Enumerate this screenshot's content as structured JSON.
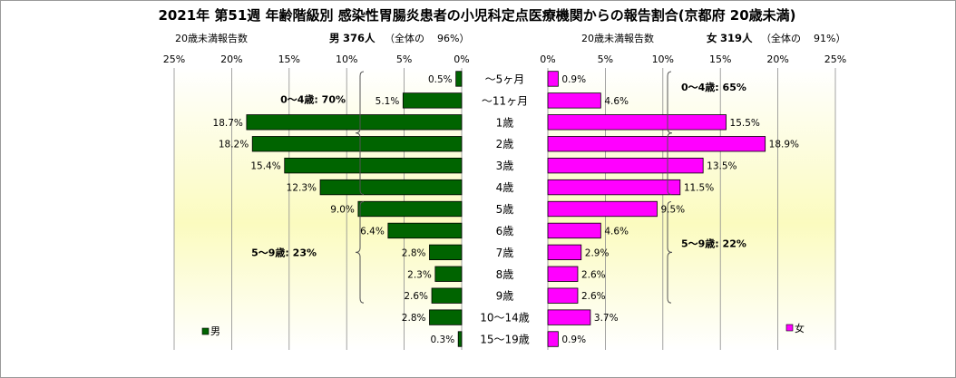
{
  "title": "2021年 第51週 年齢階級別 感染性胃腸炎患者の小児科定点医療機関からの報告割合(京都府 20歳未満)",
  "colors": {
    "male": "#006400",
    "female": "#ff00ff",
    "bar_stroke": "#000000",
    "plot_bg_top": "#ffffff",
    "plot_bg_mid": "#fbfbbf"
  },
  "male_header": {
    "label": "20歳未満報告数",
    "sex": "男",
    "count": "376人",
    "share_label": "（全体の",
    "share_value": "96%）"
  },
  "female_header": {
    "label": "20歳未満報告数",
    "sex": "女",
    "count": "319人",
    "share_label": "（全体の",
    "share_value": "91%）"
  },
  "chart_data": {
    "type": "bar",
    "orientation": "horizontal-butterfly",
    "unit": "%",
    "categories": [
      "～5ヶ月",
      "～11ヶ月",
      "1歳",
      "2歳",
      "3歳",
      "4歳",
      "5歳",
      "6歳",
      "7歳",
      "8歳",
      "9歳",
      "10～14歳",
      "15～19歳"
    ],
    "series": [
      {
        "name": "男",
        "side": "left",
        "values": [
          0.5,
          5.1,
          18.7,
          18.2,
          15.4,
          12.3,
          9.0,
          6.4,
          2.8,
          2.3,
          2.6,
          2.8,
          0.3
        ]
      },
      {
        "name": "女",
        "side": "right",
        "values": [
          0.9,
          4.6,
          15.5,
          18.9,
          13.5,
          11.5,
          9.5,
          4.6,
          2.9,
          2.6,
          2.6,
          3.7,
          0.9
        ]
      }
    ],
    "value_labels": {
      "male": [
        "0.5%",
        "5.1%",
        "18.7%",
        "18.2%",
        "15.4%",
        "12.3%",
        "9.0%",
        "6.4%",
        "2.8%",
        "2.3%",
        "2.6%",
        "2.8%",
        "0.3%"
      ],
      "female": [
        "0.9%",
        "4.6%",
        "15.5%",
        "18.9%",
        "13.5%",
        "11.5%",
        "9.5%",
        "4.6%",
        "2.9%",
        "2.6%",
        "2.6%",
        "3.7%",
        "0.9%"
      ]
    },
    "xlim": [
      0,
      25
    ],
    "x_ticks": [
      0,
      5,
      10,
      15,
      20,
      25
    ],
    "x_tick_labels": [
      "0%",
      "5%",
      "10%",
      "15%",
      "20%",
      "25%"
    ],
    "grid": "vertical",
    "legend": [
      {
        "name": "男",
        "placement": "bottom-left"
      },
      {
        "name": "女",
        "placement": "bottom-right"
      }
    ],
    "group_annotations": [
      {
        "side": "male",
        "label": "0～4歳: 70%",
        "from": 0,
        "to": 5
      },
      {
        "side": "male",
        "label": "5～9歳: 23%",
        "from": 6,
        "to": 10
      },
      {
        "side": "female",
        "label": "0～4歳: 65%",
        "from": 0,
        "to": 5
      },
      {
        "side": "female",
        "label": "5～9歳: 22%",
        "from": 6,
        "to": 10
      }
    ]
  }
}
